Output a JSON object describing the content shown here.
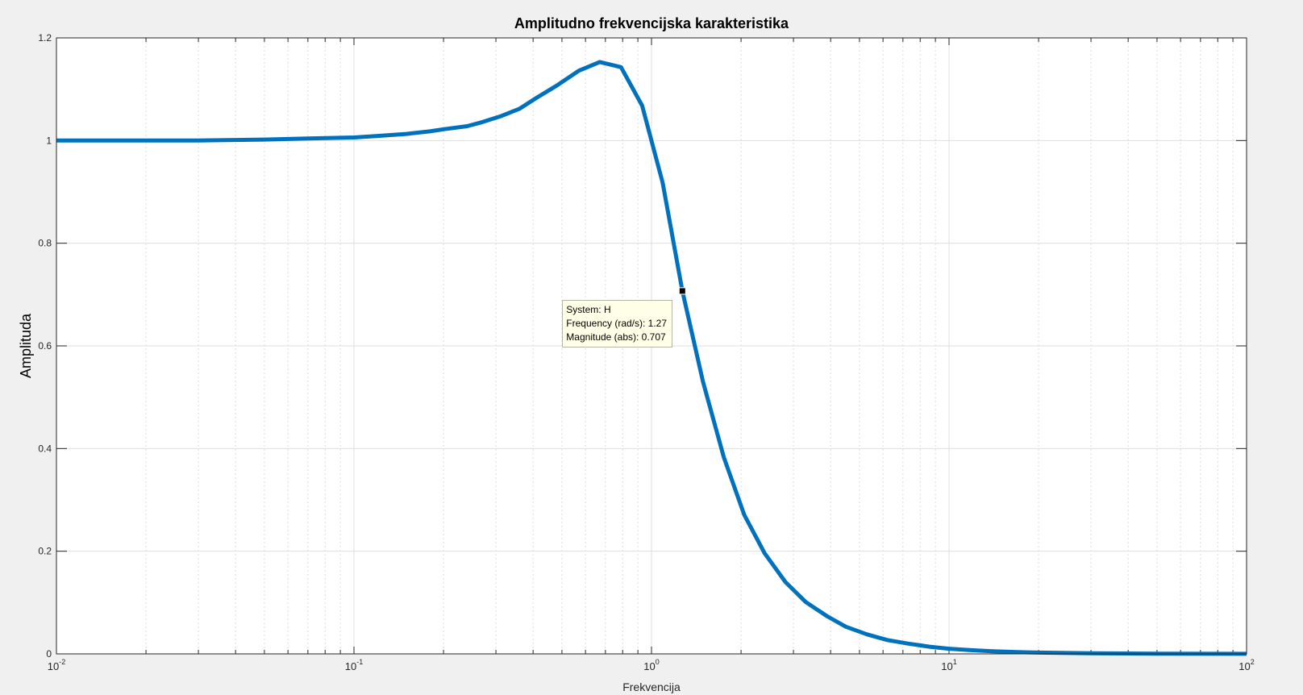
{
  "chart_data": {
    "type": "line",
    "title": "Amplitudno frekvencijska karakteristika",
    "xlabel": "Frekvencija",
    "ylabel": "Amplituda",
    "xscale": "log",
    "xlim": [
      0.01,
      100
    ],
    "ylim": [
      0,
      1.2
    ],
    "xticks": [
      {
        "value": 0.01,
        "base": "10",
        "exp": "-2"
      },
      {
        "value": 0.1,
        "base": "10",
        "exp": "-1"
      },
      {
        "value": 1,
        "base": "10",
        "exp": "0"
      },
      {
        "value": 10,
        "base": "10",
        "exp": "1"
      },
      {
        "value": 100,
        "base": "10",
        "exp": "2"
      }
    ],
    "yticks": [
      {
        "value": 0,
        "label": "0"
      },
      {
        "value": 0.2,
        "label": "0.2"
      },
      {
        "value": 0.4,
        "label": "0.4"
      },
      {
        "value": 0.6,
        "label": "0.6"
      },
      {
        "value": 0.8,
        "label": "0.8"
      },
      {
        "value": 1,
        "label": "1"
      },
      {
        "value": 1.2,
        "label": "1.2"
      }
    ],
    "grid": true,
    "minor_grid": true,
    "series": [
      {
        "color": "#0072bd",
        "x": [
          0.01,
          0.02,
          0.03,
          0.05,
          0.07,
          0.1,
          0.12,
          0.15,
          0.18,
          0.2,
          0.24,
          0.27,
          0.31,
          0.36,
          0.41,
          0.48,
          0.57,
          0.67,
          0.79,
          0.93,
          1.09,
          1.27,
          1.49,
          1.75,
          2.05,
          2.4,
          2.82,
          3.3,
          3.9,
          4.5,
          5.3,
          6.2,
          7.3,
          8.6,
          10,
          12,
          14,
          17,
          20,
          30,
          50,
          100
        ],
        "y": [
          1.0,
          1.0,
          1.0,
          1.002,
          1.004,
          1.006,
          1.009,
          1.013,
          1.018,
          1.022,
          1.028,
          1.036,
          1.047,
          1.062,
          1.083,
          1.107,
          1.136,
          1.153,
          1.143,
          1.068,
          0.918,
          0.707,
          0.53,
          0.383,
          0.271,
          0.196,
          0.14,
          0.101,
          0.073,
          0.053,
          0.038,
          0.027,
          0.02,
          0.014,
          0.01,
          0.007,
          0.005,
          0.0035,
          0.0025,
          0.0011,
          0.0004,
          0.0001
        ]
      }
    ],
    "annotations": [
      {
        "type": "datatip",
        "x": 1.27,
        "y": 0.707,
        "lines": [
          "System: H",
          "Frequency (rad/s): 1.27",
          "Magnitude (abs): 0.707"
        ]
      }
    ]
  }
}
